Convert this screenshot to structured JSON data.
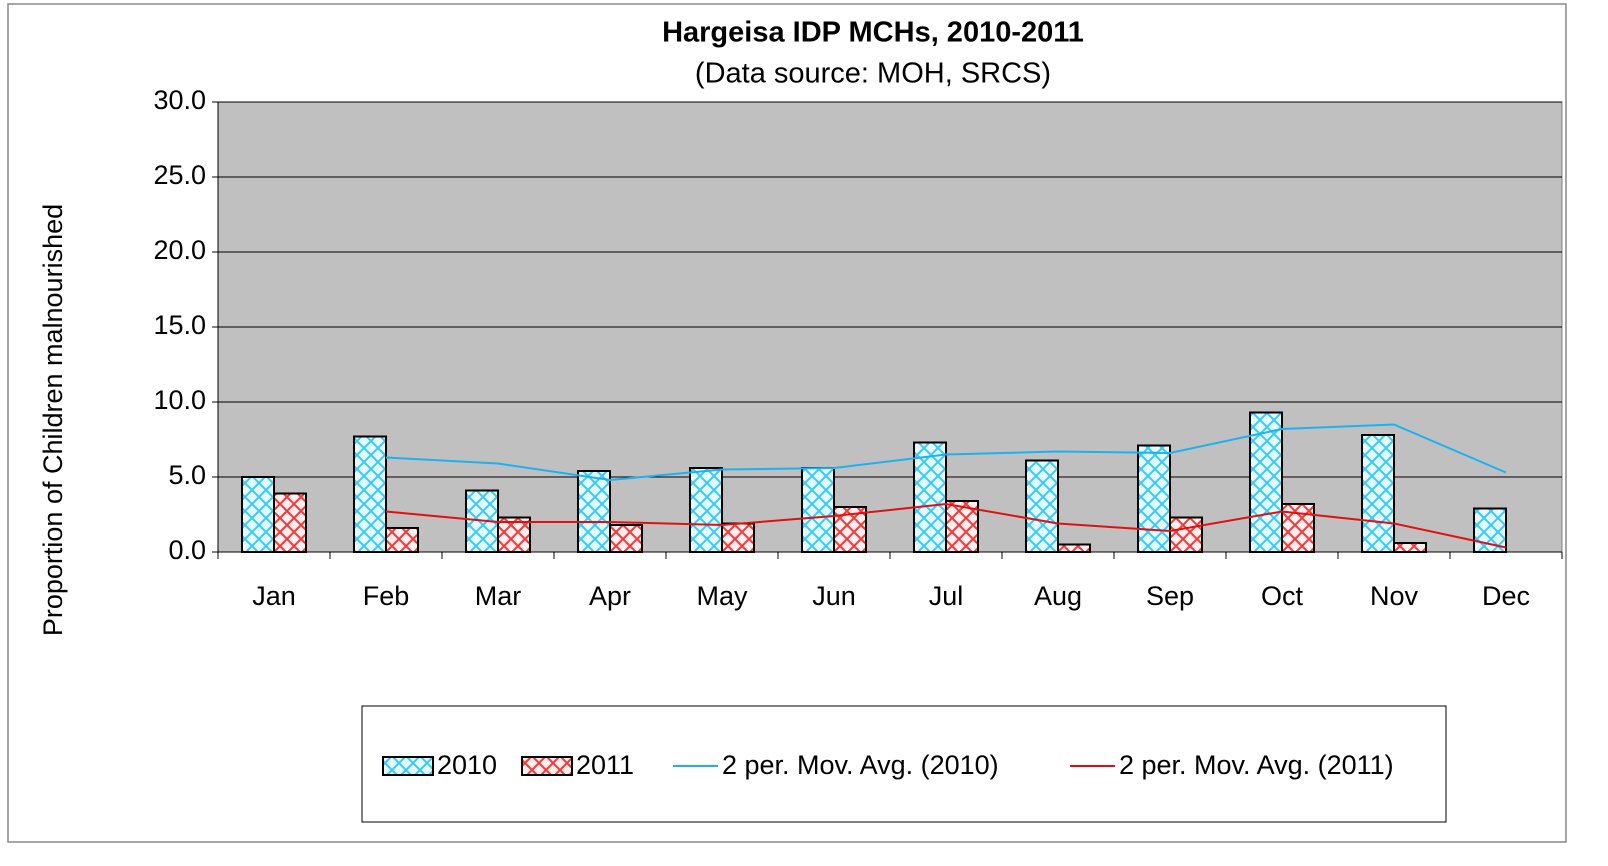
{
  "chart_data": {
    "type": "bar",
    "title": "Hargeisa IDP MCHs, 2010-2011",
    "subtitle": "(Data source: MOH, SRCS)",
    "y_label": "Proportion of Children malnourished",
    "categories": [
      "Jan",
      "Feb",
      "Mar",
      "Apr",
      "May",
      "Jun",
      "Jul",
      "Aug",
      "Sep",
      "Oct",
      "Nov",
      "Dec"
    ],
    "series": [
      {
        "name": "2010",
        "kind": "bar",
        "color": "#33ccff",
        "values": [
          5.0,
          7.7,
          4.1,
          5.4,
          5.6,
          5.6,
          7.3,
          6.1,
          7.1,
          9.3,
          7.8,
          2.9
        ]
      },
      {
        "name": "2011",
        "kind": "bar",
        "color": "#ff3333",
        "values": [
          3.9,
          1.6,
          2.3,
          1.8,
          1.9,
          3.0,
          3.4,
          0.5,
          2.3,
          3.2,
          0.6,
          0
        ]
      },
      {
        "name": "2 per. Mov. Avg. (2010)",
        "kind": "line",
        "color": "#1ab2f0",
        "values": [
          null,
          6.3,
          5.9,
          4.8,
          5.5,
          5.6,
          6.5,
          6.7,
          6.6,
          8.2,
          8.5,
          5.3
        ]
      },
      {
        "name": "2 per. Mov. Avg. (2011)",
        "kind": "line",
        "color": "#e01010",
        "values": [
          null,
          2.7,
          2.0,
          2.0,
          1.8,
          2.4,
          3.2,
          1.9,
          1.4,
          2.7,
          1.9,
          0.3
        ]
      }
    ],
    "ylim": [
      0,
      30
    ],
    "yticks": [
      {
        "value": 0,
        "label": "0.0"
      },
      {
        "value": 5,
        "label": "5.0"
      },
      {
        "value": 10,
        "label": "10.0"
      },
      {
        "value": 15,
        "label": "15.0"
      },
      {
        "value": 20,
        "label": "20.0"
      },
      {
        "value": 25,
        "label": "25.0"
      },
      {
        "value": 30,
        "label": "30.0"
      }
    ],
    "grid": true,
    "legend": "bottom"
  }
}
